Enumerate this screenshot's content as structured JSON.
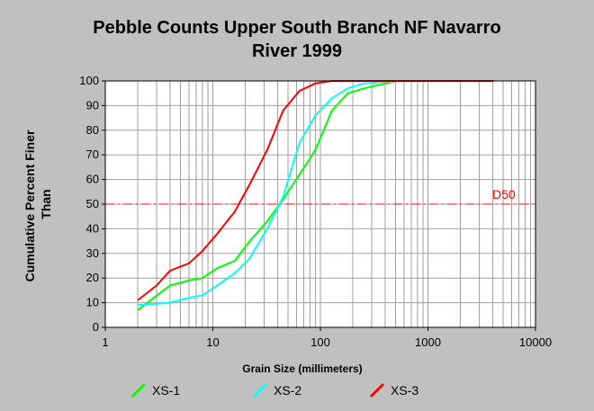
{
  "chart_data": {
    "type": "line",
    "title_line1": "Pebble Counts Upper South Branch NF Navarro",
    "title_line2": "River 1999",
    "xlabel": "Grain Size (millimeters)",
    "ylabel_line1": "Cumulative Percent Finer",
    "ylabel_line2": "Than",
    "x_scale": "log",
    "xlim": [
      1,
      10000
    ],
    "ylim": [
      0,
      100
    ],
    "x_ticks": [
      "1",
      "10",
      "100",
      "1000",
      "10000"
    ],
    "y_ticks": [
      "0",
      "10",
      "20",
      "30",
      "40",
      "50",
      "60",
      "70",
      "80",
      "90",
      "100"
    ],
    "grid": true,
    "reference_line": {
      "label": "D50",
      "y": 50,
      "color": "#ff0000"
    },
    "series": [
      {
        "name": "XS-1",
        "color": "#00ff00",
        "points": [
          [
            2,
            7
          ],
          [
            4,
            17
          ],
          [
            6,
            19
          ],
          [
            8,
            20
          ],
          [
            11,
            24
          ],
          [
            16,
            27
          ],
          [
            22,
            35
          ],
          [
            32,
            43
          ],
          [
            45,
            52
          ],
          [
            64,
            62
          ],
          [
            90,
            72
          ],
          [
            128,
            88
          ],
          [
            180,
            95
          ],
          [
            256,
            97
          ],
          [
            512,
            100
          ],
          [
            4096,
            100
          ]
        ]
      },
      {
        "name": "XS-2",
        "color": "#00ffff",
        "points": [
          [
            2,
            9
          ],
          [
            4,
            10
          ],
          [
            6,
            12
          ],
          [
            8,
            13
          ],
          [
            11,
            17
          ],
          [
            16,
            22
          ],
          [
            22,
            28
          ],
          [
            32,
            40
          ],
          [
            45,
            53
          ],
          [
            64,
            75
          ],
          [
            90,
            86
          ],
          [
            128,
            93
          ],
          [
            180,
            97
          ],
          [
            256,
            99
          ],
          [
            512,
            100
          ],
          [
            4096,
            100
          ]
        ]
      },
      {
        "name": "XS-3",
        "color": "#ff0000",
        "points": [
          [
            2,
            11
          ],
          [
            3,
            17
          ],
          [
            4,
            23
          ],
          [
            6,
            26
          ],
          [
            8,
            31
          ],
          [
            11,
            38
          ],
          [
            16,
            47
          ],
          [
            22,
            58
          ],
          [
            32,
            72
          ],
          [
            45,
            88
          ],
          [
            64,
            96
          ],
          [
            90,
            99
          ],
          [
            128,
            100
          ],
          [
            180,
            100
          ],
          [
            256,
            100
          ],
          [
            512,
            100
          ],
          [
            4096,
            100
          ]
        ]
      }
    ],
    "legend_position": "bottom",
    "plot_background": "#ffffff",
    "page_background": "#c0c0c0"
  }
}
